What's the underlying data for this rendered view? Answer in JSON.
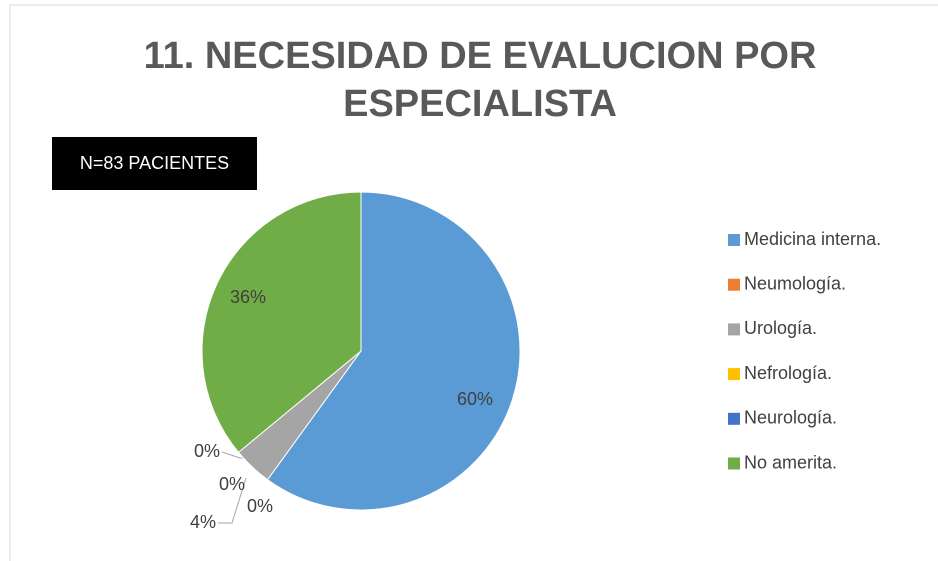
{
  "chart_data": {
    "type": "pie",
    "title": "11. NECESIDAD DE EVALUCION POR ESPECIALISTA",
    "annotation": "N=83 PACIENTES",
    "categories": [
      "Medicina interna.",
      "Neumología.",
      "Urología.",
      "Nefrología.",
      "Neurología.",
      "No amerita."
    ],
    "values": [
      60,
      0,
      4,
      0,
      0,
      36
    ],
    "value_labels": [
      "60%",
      "0%",
      "4%",
      "0%",
      "0%",
      "36%"
    ],
    "colors": [
      "#5b9bd5",
      "#ed7d31",
      "#a5a5a5",
      "#ffc000",
      "#4472c4",
      "#70ad47"
    ],
    "legend": "right"
  }
}
